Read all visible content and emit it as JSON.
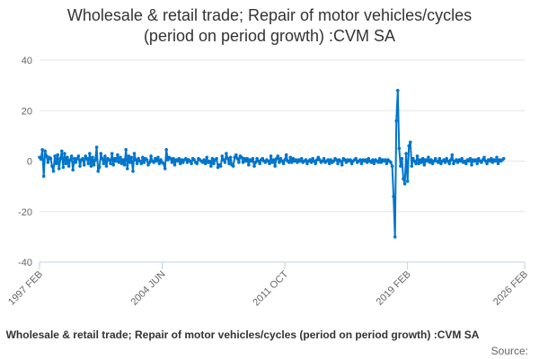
{
  "title": {
    "line1": "Wholesale & retail trade; Repair of motor vehicles/cycles",
    "line2": "(period on period growth) :CVM SA"
  },
  "legend": {
    "label": "Wholesale & retail trade; Repair of motor vehicles/cycles (period on period growth) :CVM SA"
  },
  "source": {
    "label": "Source:"
  },
  "chart_data": {
    "type": "line",
    "title": "Wholesale & retail trade; Repair of motor vehicles/cycles (period on period growth) :CVM SA",
    "xlabel": "",
    "ylabel": "",
    "ylim": [
      -40,
      40
    ],
    "yticks": [
      40,
      20,
      0,
      -20,
      -40
    ],
    "xticks": [
      "1997 FEB",
      "2004 JUN",
      "2011 OCT",
      "2019 FEB",
      "2026 FEB"
    ],
    "xticks_month_index": [
      0,
      88,
      176,
      264,
      348
    ],
    "grid": true,
    "legend_position": "bottom",
    "series_color": "#0075cc",
    "series": [
      {
        "name": "Wholesale & retail trade; Repair of motor vehicles/cycles (period on period growth) :CVM SA",
        "start": "1997 FEB",
        "frequency": "monthly",
        "values": [
          1.5,
          0.8,
          4.5,
          -6.0,
          4.0,
          2.0,
          -0.5,
          1.5,
          1.0,
          -2.0,
          -4.0,
          2.0,
          -1.0,
          2.5,
          -3.0,
          1.0,
          4.0,
          -2.5,
          3.0,
          -1.0,
          1.5,
          -2.0,
          0.5,
          2.0,
          -3.5,
          1.0,
          -0.5,
          1.0,
          2.0,
          -2.0,
          0.5,
          1.0,
          -1.5,
          2.0,
          1.0,
          -1.0,
          3.0,
          -2.0,
          1.5,
          -1.5,
          0.5,
          5.5,
          -4.0,
          -2.5,
          3.0,
          1.0,
          -1.0,
          2.0,
          -2.0,
          1.0,
          0.5,
          -1.0,
          3.0,
          -1.5,
          1.0,
          0.0,
          2.5,
          -0.5,
          1.5,
          -1.0,
          0.5,
          -1.5,
          4.5,
          -3.0,
          2.0,
          -0.5,
          1.5,
          -4.0,
          3.0,
          0.5,
          -1.0,
          1.0,
          0.0,
          -1.0,
          1.5,
          -0.5,
          1.0,
          0.5,
          -1.5,
          -0.5,
          2.0,
          0.0,
          -0.5,
          1.0,
          0.0,
          1.5,
          -1.0,
          0.5,
          -0.5,
          -1.0,
          -3.0,
          4.5,
          0.5,
          1.5,
          1.0,
          -0.5,
          1.0,
          -1.5,
          0.5,
          0.0,
          1.0,
          -1.0,
          0.5,
          -0.5,
          0.5,
          1.0,
          -0.5,
          0.5,
          0.0,
          -1.0,
          1.0,
          0.5,
          -0.5,
          -1.0,
          1.0,
          0.5,
          0.0,
          -0.5,
          0.5,
          -1.0,
          1.5,
          -0.5,
          0.0,
          -2.0,
          1.0,
          -1.0,
          0.5,
          1.0,
          -2.5,
          -1.5,
          -2.0,
          2.0,
          0.5,
          -0.5,
          3.0,
          1.0,
          -1.0,
          1.5,
          -1.5,
          -2.0,
          1.5,
          2.5,
          1.0,
          -0.5,
          2.0,
          1.5,
          -0.5,
          1.0,
          0.0,
          1.0,
          -1.5,
          0.5,
          0.0,
          1.0,
          -2.0,
          -0.5,
          1.0,
          0.0,
          -1.0,
          0.5,
          1.0,
          0.0,
          -0.5,
          0.5,
          0.0,
          -1.0,
          2.0,
          -0.5,
          0.5,
          -2.0,
          1.0,
          2.0,
          -0.5,
          1.0,
          0.0,
          -1.0,
          0.5,
          2.5,
          0.0,
          -0.5,
          1.5,
          -0.5,
          1.0,
          0.0,
          0.5,
          -0.5,
          0.5,
          0.0,
          1.0,
          -0.5,
          0.0,
          0.5,
          -1.0,
          0.0,
          0.5,
          -0.5,
          1.0,
          0.0,
          -1.0,
          0.5,
          1.5,
          0.5,
          -0.5,
          0.0,
          1.0,
          -0.5,
          0.0,
          0.5,
          -1.0,
          0.5,
          -0.5,
          0.0,
          1.0,
          0.5,
          -1.0,
          0.5,
          0.0,
          -1.5,
          1.0,
          0.5,
          -0.5,
          0.5,
          0.0,
          0.5,
          -1.0,
          0.0,
          0.5,
          1.0,
          -0.5,
          0.0,
          0.5,
          -1.0,
          0.5,
          0.0,
          0.5,
          -0.5,
          1.0,
          0.0,
          -0.5,
          0.5,
          -1.0,
          0.5,
          0.0,
          -0.5,
          1.0,
          -0.5,
          0.5,
          0.0,
          0.5,
          -1.0,
          0.5,
          0.0,
          -0.5,
          -2.0,
          -14.0,
          -30.0,
          16.0,
          28.0,
          5.0,
          -2.0,
          1.0,
          -7.0,
          -9.0,
          3.0,
          -8.0,
          6.0,
          7.5,
          -2.0,
          1.0,
          0.0,
          -1.0,
          2.0,
          -1.0,
          0.5,
          -0.5,
          1.0,
          -1.5,
          0.5,
          0.0,
          1.5,
          -0.5,
          0.5,
          -1.0,
          0.0,
          1.0,
          0.0,
          -0.5,
          1.0,
          -1.0,
          0.0,
          0.5,
          -0.5,
          1.0,
          0.0,
          -1.0,
          0.5,
          2.5,
          -1.0,
          0.0,
          0.5,
          -0.5,
          0.5,
          0.0,
          1.0,
          -0.5,
          0.0,
          -1.0,
          0.5,
          0.0,
          1.0,
          -1.5,
          0.5,
          0.0,
          0.5,
          -1.0,
          1.0,
          0.0,
          -0.5,
          0.5,
          1.5,
          0.0,
          -1.0,
          0.5,
          0.0,
          1.0,
          -0.5,
          0.5,
          0.0,
          1.5,
          -1.0,
          0.5,
          0.0,
          0.5,
          1.0
        ]
      }
    ]
  }
}
